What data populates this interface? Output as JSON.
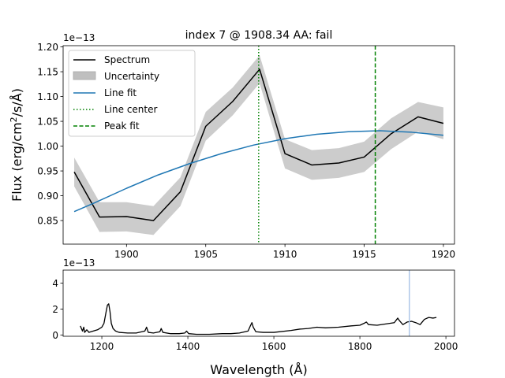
{
  "figure": {
    "title": "index 7 @ 1908.34 AA: fail",
    "xlabel": "Wavelength (Å)",
    "ylabel_main": "Flux (erg/cm",
    "ylabel_sup": "2",
    "ylabel_tail": "/s/Å)",
    "offset_main": "1e−13",
    "offset_bottom": "1e−13"
  },
  "chart_data": [
    {
      "name": "main-panel",
      "type": "line",
      "title": "index 7 @ 1908.34 AA: fail",
      "xlabel": "",
      "ylabel": "Flux (erg/cm2/s/Å)",
      "xlim": [
        1896.0,
        1920.7
      ],
      "ylim": [
        0.8025,
        1.2025
      ],
      "xticks": [
        1900,
        1905,
        1910,
        1915,
        1920
      ],
      "yticks": [
        0.85,
        0.9,
        0.95,
        1.0,
        1.05,
        1.1,
        1.15,
        1.2
      ],
      "ytick_labels": [
        "0.85",
        "0.90",
        "0.95",
        "1.00",
        "1.05",
        "1.10",
        "1.15",
        "1.20"
      ],
      "y_offset_label": "1e−13",
      "legend": [
        "Spectrum",
        "Uncertainty",
        "Line fit",
        "Line center",
        "Peak fit"
      ],
      "legend_position": "upper-left",
      "series": [
        {
          "name": "Spectrum",
          "color": "#000000",
          "x": [
            1896.7,
            1898.3,
            1900.0,
            1901.7,
            1903.4,
            1905.0,
            1906.7,
            1908.4,
            1910.0,
            1911.7,
            1913.4,
            1915.0,
            1916.7,
            1918.4,
            1920.0
          ],
          "y": [
            0.948,
            0.857,
            0.858,
            0.85,
            0.908,
            1.04,
            1.09,
            1.155,
            0.985,
            0.962,
            0.966,
            0.978,
            1.025,
            1.059,
            1.046
          ]
        },
        {
          "name": "Uncertainty",
          "color": "#bfbfbf",
          "x": [
            1896.7,
            1898.3,
            1900.0,
            1901.7,
            1903.4,
            1905.0,
            1906.7,
            1908.4,
            1910.0,
            1911.7,
            1913.4,
            1915.0,
            1916.7,
            1918.4,
            1920.0
          ],
          "upper": [
            0.977,
            0.887,
            0.887,
            0.879,
            0.937,
            1.069,
            1.118,
            1.183,
            1.014,
            0.992,
            0.996,
            1.009,
            1.056,
            1.089,
            1.078
          ],
          "lower": [
            0.919,
            0.827,
            0.828,
            0.821,
            0.879,
            1.011,
            1.062,
            1.127,
            0.955,
            0.932,
            0.936,
            0.948,
            0.994,
            1.029,
            1.014
          ]
        },
        {
          "name": "Line fit",
          "color": "#1f77b4",
          "x": [
            1896.7,
            1898.0,
            1900.0,
            1902.0,
            1904.0,
            1906.0,
            1908.0,
            1910.0,
            1912.0,
            1914.0,
            1916.0,
            1918.0,
            1920.0
          ],
          "y": [
            0.868,
            0.886,
            0.915,
            0.942,
            0.965,
            0.985,
            1.002,
            1.015,
            1.024,
            1.029,
            1.031,
            1.028,
            1.022
          ]
        }
      ],
      "vlines": [
        {
          "name": "Line center",
          "x": 1908.34,
          "color": "#008000",
          "style": "dotted"
        },
        {
          "name": "Peak fit",
          "x": 1915.7,
          "color": "#008000",
          "style": "dashed"
        }
      ]
    },
    {
      "name": "overview-panel",
      "type": "line",
      "xlabel": "Wavelength (Å)",
      "xlim": [
        1110,
        2020
      ],
      "ylim": [
        -0.1,
        5.0
      ],
      "xticks": [
        1200,
        1400,
        1600,
        1800,
        2000
      ],
      "yticks": [
        0,
        2,
        4
      ],
      "y_offset_label": "1e−13",
      "series": [
        {
          "name": "Spectrum",
          "color": "#000000",
          "x": [
            1150,
            1155,
            1158,
            1160,
            1165,
            1170,
            1180,
            1190,
            1200,
            1205,
            1210,
            1213,
            1216,
            1219,
            1222,
            1226,
            1232,
            1240,
            1260,
            1280,
            1300,
            1304,
            1308,
            1320,
            1335,
            1338,
            1342,
            1360,
            1380,
            1393,
            1397,
            1402,
            1420,
            1450,
            1480,
            1500,
            1520,
            1540,
            1546,
            1549,
            1552,
            1558,
            1575,
            1600,
            1640,
            1660,
            1680,
            1700,
            1720,
            1750,
            1780,
            1800,
            1810,
            1815,
            1820,
            1840,
            1860,
            1880,
            1888,
            1892,
            1900,
            1910,
            1920,
            1930,
            1940,
            1950,
            1960,
            1970,
            1978
          ],
          "y": [
            0.7,
            0.3,
            0.6,
            0.2,
            0.4,
            0.2,
            0.3,
            0.4,
            0.6,
            0.9,
            1.8,
            2.3,
            2.4,
            1.8,
            0.9,
            0.5,
            0.3,
            0.2,
            0.15,
            0.15,
            0.3,
            0.6,
            0.2,
            0.15,
            0.25,
            0.5,
            0.2,
            0.1,
            0.1,
            0.15,
            0.3,
            0.1,
            0.05,
            0.05,
            0.1,
            0.1,
            0.15,
            0.3,
            0.75,
            0.95,
            0.6,
            0.25,
            0.2,
            0.2,
            0.35,
            0.45,
            0.5,
            0.6,
            0.55,
            0.6,
            0.7,
            0.75,
            0.9,
            1.0,
            0.8,
            0.75,
            0.85,
            0.95,
            1.3,
            1.1,
            0.8,
            1.0,
            1.05,
            0.95,
            0.8,
            1.2,
            1.35,
            1.3,
            1.35
          ]
        }
      ],
      "vlines": [
        {
          "name": "Window marker",
          "x": 1915,
          "color": "#aec7e8",
          "style": "solid"
        }
      ]
    }
  ]
}
